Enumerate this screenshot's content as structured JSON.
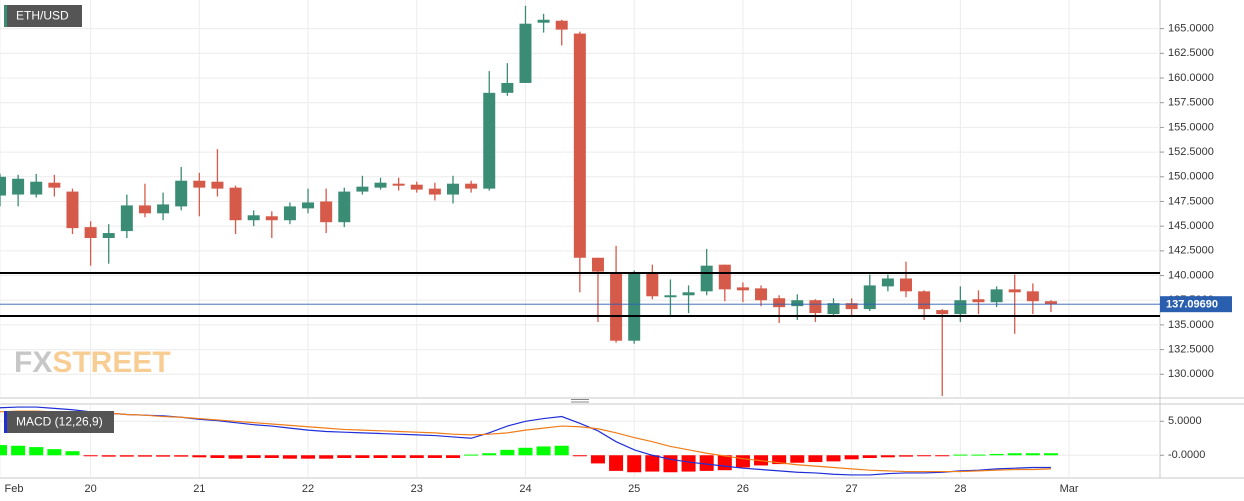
{
  "watermark": [
    "FX",
    "STREET"
  ],
  "chart_data": [
    {
      "type": "candlestick",
      "title": "ETH/USD",
      "categories": [
        "Feb",
        null,
        null,
        null,
        null,
        "20",
        null,
        null,
        null,
        null,
        null,
        "21",
        null,
        null,
        null,
        null,
        null,
        "22",
        null,
        null,
        null,
        null,
        null,
        "23",
        null,
        null,
        null,
        null,
        null,
        "24",
        null,
        null,
        null,
        null,
        null,
        "25",
        null,
        null,
        null,
        null,
        null,
        "26",
        null,
        null,
        null,
        null,
        null,
        "27",
        null,
        null,
        null,
        null,
        null,
        "28",
        null,
        null,
        null,
        null,
        null,
        "Mar"
      ],
      "open": [
        148.1,
        148.2,
        148.2,
        149.4,
        148.5,
        144.9,
        143.8,
        144.5,
        147.1,
        146.3,
        147.0,
        149.6,
        149.5,
        148.9,
        145.6,
        146.0,
        145.6,
        146.8,
        147.5,
        145.4,
        148.5,
        148.9,
        149.3,
        149.2,
        148.8,
        148.2,
        149.3,
        148.8,
        158.5,
        159.5,
        165.6,
        165.8,
        164.5,
        141.8,
        140.3,
        133.4,
        140.2,
        137.8,
        138.0,
        138.4,
        141.1,
        138.8,
        138.7,
        137.7,
        136.9,
        137.5,
        136.1,
        137.2,
        136.6,
        138.9,
        139.7,
        138.4,
        136.5,
        136.1,
        137.6,
        137.3,
        138.6,
        138.4,
        137.4,
        null
      ],
      "high": [
        150.3,
        150.2,
        150.3,
        150.2,
        148.8,
        145.5,
        145.2,
        148.2,
        149.3,
        148.4,
        151.0,
        150.4,
        152.8,
        149.1,
        146.6,
        146.5,
        147.4,
        148.8,
        148.8,
        148.9,
        150.1,
        149.9,
        149.9,
        149.5,
        149.4,
        150.1,
        149.6,
        160.7,
        161.5,
        167.3,
        166.5,
        165.9,
        164.7,
        141.8,
        143.0,
        140.5,
        141.1,
        139.6,
        139.0,
        142.7,
        141.1,
        139.3,
        139.0,
        138.0,
        138.1,
        137.6,
        137.7,
        137.7,
        140.1,
        140.1,
        141.4,
        138.5,
        136.6,
        138.9,
        138.5,
        138.9,
        140.1,
        139.2,
        137.5,
        null
      ],
      "low": [
        147.0,
        147.0,
        147.9,
        148.0,
        144.2,
        141.0,
        141.2,
        143.8,
        145.9,
        145.6,
        146.6,
        146.0,
        148.0,
        144.2,
        145.0,
        143.8,
        145.2,
        146.3,
        144.3,
        144.9,
        148.2,
        148.7,
        148.6,
        148.4,
        147.6,
        147.3,
        148.4,
        148.6,
        158.2,
        159.5,
        164.6,
        163.3,
        138.3,
        135.3,
        133.2,
        133.1,
        137.6,
        135.8,
        136.2,
        138.0,
        137.4,
        137.3,
        136.9,
        135.2,
        135.5,
        135.3,
        135.8,
        135.9,
        136.4,
        138.4,
        137.8,
        135.5,
        127.8,
        135.3,
        136.1,
        136.8,
        134.1,
        136.1,
        136.3,
        null
      ],
      "close": [
        150.0,
        149.8,
        149.5,
        148.9,
        144.8,
        143.8,
        144.3,
        147.1,
        146.3,
        147.2,
        149.6,
        148.9,
        148.8,
        145.6,
        146.1,
        145.6,
        147.0,
        147.4,
        145.4,
        148.5,
        149.0,
        149.4,
        149.1,
        148.7,
        148.2,
        149.3,
        148.8,
        158.5,
        159.5,
        165.5,
        165.9,
        164.9,
        141.8,
        140.4,
        133.4,
        140.3,
        137.9,
        138.0,
        138.3,
        141.0,
        138.6,
        138.5,
        137.5,
        136.8,
        137.5,
        136.2,
        137.2,
        136.6,
        139.0,
        139.7,
        138.4,
        136.6,
        136.1,
        137.5,
        137.3,
        138.6,
        138.3,
        137.4,
        137.1,
        null
      ],
      "up_color": "#3b8c74",
      "down_color": "#d65a49",
      "levels": [
        140.25,
        135.9
      ],
      "level_color": "#000000",
      "current_price": {
        "value": 137.0969,
        "label": "137.09690"
      },
      "current_color": "#2a5fb0",
      "ylim": [
        127.7,
        167.9
      ],
      "yticks": [
        {
          "value": 130,
          "label": "130.0000"
        },
        {
          "value": 132.5,
          "label": "132.5000"
        },
        {
          "value": 135,
          "label": "135.0000"
        },
        {
          "value": 137.5,
          "label": "137.5000"
        },
        {
          "value": 140,
          "label": "140.0000"
        },
        {
          "value": 142.5,
          "label": "142.5000"
        },
        {
          "value": 145,
          "label": "145.0000"
        },
        {
          "value": 147.5,
          "label": "147.5000"
        },
        {
          "value": 150,
          "label": "150.0000"
        },
        {
          "value": 152.5,
          "label": "152.5000"
        },
        {
          "value": 155,
          "label": "155.0000"
        },
        {
          "value": 157.5,
          "label": "157.5000"
        },
        {
          "value": 160,
          "label": "160.0000"
        },
        {
          "value": 162.5,
          "label": "162.5000"
        },
        {
          "value": 165,
          "label": "165.0000"
        }
      ],
      "grid": true
    },
    {
      "type": "macd",
      "title": "MACD (12,26,9)",
      "series": [
        {
          "color": "#1f2fd6",
          "values": [
            7.0,
            7.1,
            7.1,
            6.9,
            6.7,
            6.4,
            6.2,
            6.0,
            5.9,
            5.8,
            5.6,
            5.3,
            5.1,
            4.8,
            4.5,
            4.3,
            4.0,
            3.7,
            3.5,
            3.4,
            3.3,
            3.2,
            3.1,
            3.0,
            2.9,
            2.7,
            2.5,
            3.3,
            4.3,
            5.0,
            5.4,
            5.7,
            4.7,
            3.6,
            2.0,
            0.8,
            0.0,
            -0.6,
            -1.0,
            -1.3,
            -1.6,
            -1.9,
            -2.1,
            -2.3,
            -2.5,
            -2.6,
            -2.8,
            -2.9,
            -2.9,
            -2.7,
            -2.6,
            -2.6,
            -2.5,
            -2.3,
            -2.2,
            -2.0,
            -1.9,
            -1.8,
            -1.8
          ]
        },
        {
          "color": "#f07d1a",
          "values": [
            6.4,
            6.5,
            6.5,
            6.4,
            6.4,
            6.3,
            6.2,
            6.0,
            5.9,
            5.7,
            5.6,
            5.4,
            5.2,
            5.0,
            4.8,
            4.6,
            4.4,
            4.2,
            4.0,
            3.8,
            3.7,
            3.6,
            3.5,
            3.4,
            3.3,
            3.1,
            3.0,
            3.1,
            3.3,
            3.7,
            4.0,
            4.3,
            4.2,
            3.9,
            3.3,
            2.6,
            2.0,
            1.3,
            0.8,
            0.3,
            -0.1,
            -0.5,
            -0.8,
            -1.1,
            -1.4,
            -1.6,
            -1.8,
            -2.0,
            -2.2,
            -2.3,
            -2.4,
            -2.4,
            -2.4,
            -2.4,
            -2.3,
            -2.2,
            -2.1,
            -2.1,
            -2.0
          ]
        }
      ],
      "histogram": {
        "up_color": "#00ff00",
        "down_color": "#ff0000",
        "values": [
          1.5,
          1.4,
          1.2,
          0.9,
          0.6,
          -0.1,
          -0.2,
          -0.2,
          -0.2,
          -0.2,
          -0.2,
          -0.3,
          -0.4,
          -0.5,
          -0.4,
          -0.4,
          -0.5,
          -0.5,
          -0.5,
          -0.4,
          -0.4,
          -0.4,
          -0.4,
          -0.4,
          -0.4,
          -0.4,
          0.1,
          0.3,
          0.8,
          1.1,
          1.3,
          1.4,
          -0.1,
          -1.2,
          -2.3,
          -2.5,
          -2.4,
          -2.5,
          -2.4,
          -2.3,
          -2.2,
          -1.8,
          -1.5,
          -1.3,
          -1.1,
          -1.0,
          -0.9,
          -0.6,
          -0.4,
          -0.3,
          -0.2,
          -0.1,
          -0.1,
          0.1,
          0.1,
          0.2,
          0.3,
          0.3,
          0.3
        ]
      },
      "ylim": [
        -3.2,
        7.4
      ],
      "yticks": [
        {
          "value": 0,
          "label": "-0.0000"
        },
        {
          "value": 5,
          "label": "5.0000"
        }
      ],
      "grid": true
    }
  ]
}
